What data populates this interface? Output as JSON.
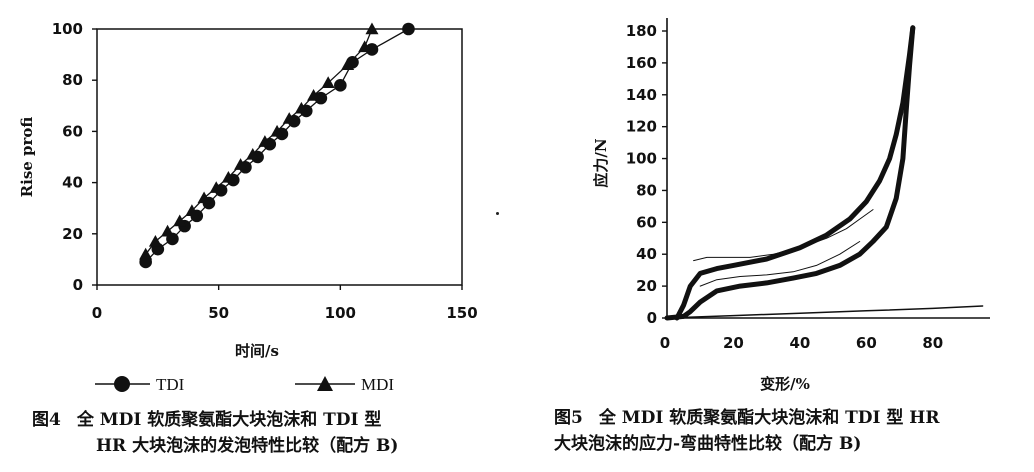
{
  "chart_data": [
    {
      "type": "line",
      "ylabel": "Rise profi",
      "xlabel": "时间/s",
      "xlim": [
        0,
        150
      ],
      "ylim": [
        0,
        100
      ],
      "xticks": [
        "0",
        "50",
        "100",
        "150"
      ],
      "yticks": [
        "0",
        "20",
        "40",
        "60",
        "80",
        "100"
      ],
      "legend": "bottom",
      "series": [
        {
          "name": "TDI",
          "marker": "circle",
          "x": [
            20,
            25,
            31,
            36,
            41,
            46,
            51,
            56,
            61,
            66,
            71,
            76,
            81,
            86,
            92,
            100,
            105,
            113,
            128
          ],
          "y": [
            9,
            14,
            18,
            23,
            27,
            32,
            37,
            41,
            46,
            50,
            55,
            59,
            64,
            68,
            73,
            78,
            87,
            92,
            100
          ]
        },
        {
          "name": "MDI",
          "marker": "triangle",
          "x": [
            20,
            24,
            29,
            34,
            39,
            44,
            49,
            54,
            59,
            64,
            69,
            74,
            79,
            84,
            89,
            95,
            103,
            110,
            113
          ],
          "y": [
            12,
            17,
            21,
            25,
            29,
            34,
            38,
            42,
            47,
            51,
            56,
            60,
            65,
            69,
            74,
            79,
            86,
            93,
            100
          ]
        }
      ]
    },
    {
      "type": "line",
      "ylabel": "应力/N",
      "xlabel": "变形/%",
      "xlim": [
        0,
        95
      ],
      "ylim": [
        0,
        185
      ],
      "xticks": [
        "0",
        "20",
        "40",
        "60",
        "80"
      ],
      "yticks": [
        "0",
        "20",
        "40",
        "60",
        "80",
        "100",
        "120",
        "140",
        "160",
        "180"
      ],
      "series": [
        {
          "x": [
            3,
            5,
            7,
            10,
            15,
            20,
            30,
            40,
            48,
            55,
            60,
            64,
            67,
            69,
            71,
            72,
            73,
            74
          ],
          "y": [
            0,
            8,
            20,
            28,
            31,
            33,
            37,
            44,
            52,
            62,
            73,
            86,
            100,
            115,
            135,
            150,
            165,
            182
          ]
        },
        {
          "x": [
            74,
            73,
            72,
            71,
            69,
            66,
            62,
            58,
            52,
            45,
            38,
            30,
            22,
            15,
            10,
            7,
            5,
            0
          ],
          "y": [
            182,
            158,
            130,
            100,
            75,
            57,
            48,
            40,
            33,
            28,
            25,
            22,
            20,
            17,
            10,
            4,
            1,
            0
          ]
        },
        {
          "x": [
            8,
            12,
            18,
            25,
            32,
            40,
            48,
            54,
            58,
            62
          ],
          "y": [
            36,
            38,
            38,
            38,
            40,
            44,
            50,
            56,
            62,
            68
          ]
        },
        {
          "x": [
            10,
            15,
            22,
            30,
            38,
            45,
            52,
            58
          ],
          "y": [
            20,
            24,
            26,
            27,
            29,
            33,
            40,
            48
          ]
        },
        {
          "x": [
            0,
            20,
            40,
            60,
            80,
            95
          ],
          "y": [
            0,
            1.5,
            3,
            4.5,
            6,
            7.5
          ]
        }
      ]
    }
  ],
  "captions": {
    "fig4_num": "图4",
    "fig4_line1": "全 MDI 软质聚氨酯大块泡沫和 TDI 型",
    "fig4_line2": "HR 大块泡沫的发泡特性比较（配方 B)",
    "fig5_num": "图5",
    "fig5_line1": "全 MDI 软质聚氨酯大块泡沫和 TDI 型 HR",
    "fig5_line2": "大块泡沫的应力-弯曲特性比较（配方 B)"
  }
}
